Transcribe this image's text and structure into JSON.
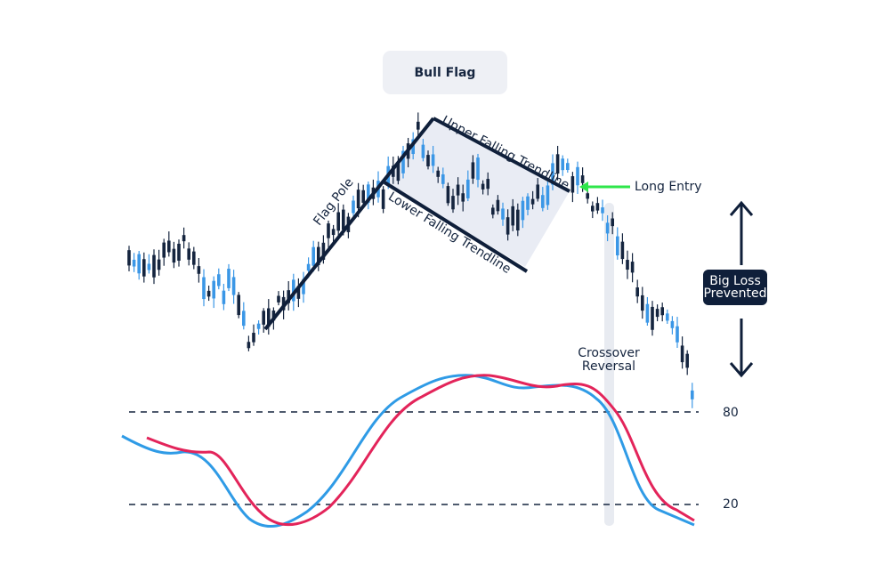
{
  "title": "Bull Flag",
  "annotations": {
    "flag_pole": "Flag Pole",
    "upper_trendline": "Upper Falling Trendline",
    "lower_trendline": "Lower Falling Trendline",
    "long_entry": "Long Entry"
  },
  "big_loss": [
    "Big Loss",
    "Prevented"
  ],
  "crossover": [
    "Crossover",
    "Reversal"
  ],
  "levels": [
    "80",
    "20"
  ]
}
